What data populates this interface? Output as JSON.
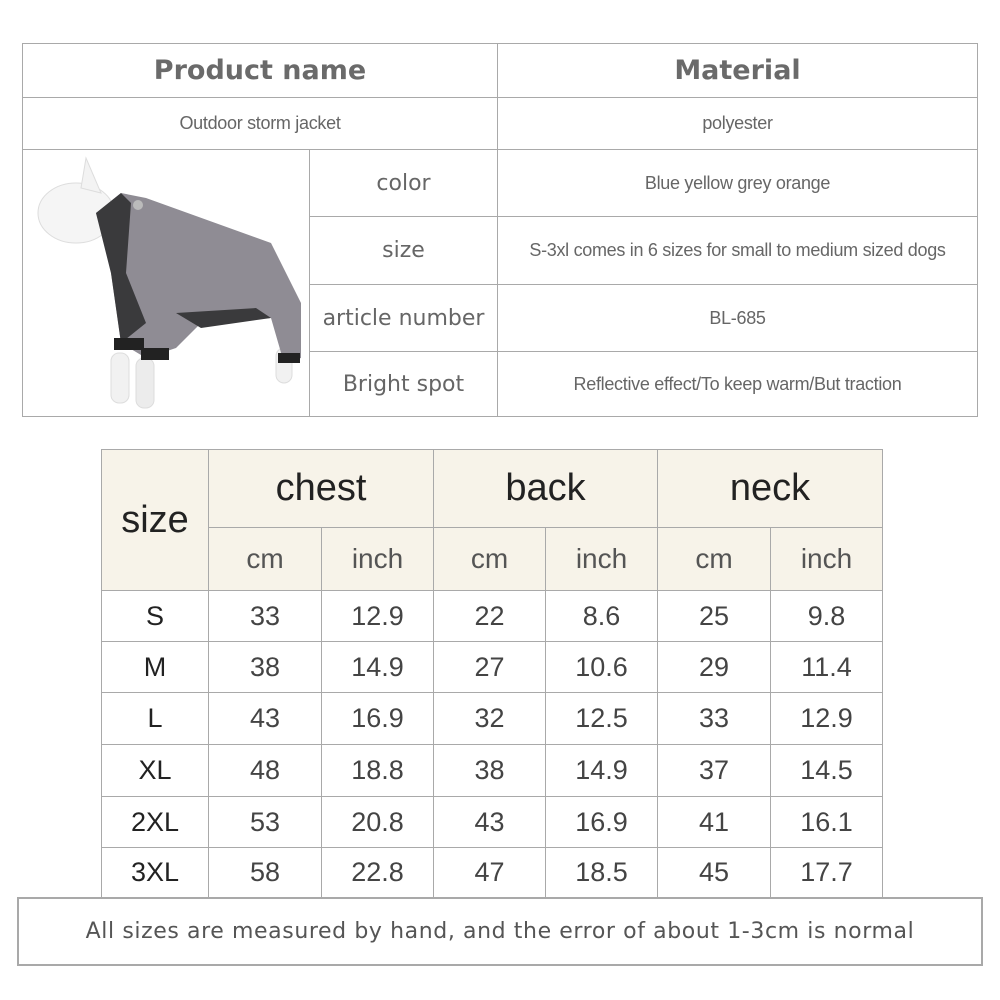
{
  "info_table": {
    "headers": [
      "Product name",
      "Material"
    ],
    "product_name": "Outdoor storm jacket",
    "material": "polyester",
    "rows": [
      {
        "label": "color",
        "value": "Blue yellow grey orange"
      },
      {
        "label": "size",
        "value": "S-3xl comes in 6 sizes for small to medium sized dogs"
      },
      {
        "label": "article number",
        "value": "BL-685"
      },
      {
        "label": "Bright spot",
        "value": "Reflective effect/To keep warm/But traction"
      }
    ]
  },
  "size_table": {
    "size_header": "size",
    "groups": [
      "chest",
      "back",
      "neck"
    ],
    "units": [
      "cm",
      "inch",
      "cm",
      "inch",
      "cm",
      "inch"
    ],
    "rows": [
      {
        "size": "S",
        "values": [
          "33",
          "12.9",
          "22",
          "8.6",
          "25",
          "9.8"
        ]
      },
      {
        "size": "M",
        "values": [
          "38",
          "14.9",
          "27",
          "10.6",
          "29",
          "11.4"
        ]
      },
      {
        "size": "L",
        "values": [
          "43",
          "16.9",
          "32",
          "12.5",
          "33",
          "12.9"
        ]
      },
      {
        "size": "XL",
        "values": [
          "48",
          "18.8",
          "38",
          "14.9",
          "37",
          "14.5"
        ]
      },
      {
        "size": "2XL",
        "values": [
          "53",
          "20.8",
          "43",
          "16.9",
          "41",
          "16.1"
        ]
      },
      {
        "size": "3XL",
        "values": [
          "58",
          "22.8",
          "47",
          "18.5",
          "45",
          "17.7"
        ]
      }
    ]
  },
  "note": "All sizes are measured by hand, and the error of about 1-3cm is normal",
  "colors": {
    "header_bg": "#f7f3e9",
    "border": "#a9a9a9"
  }
}
